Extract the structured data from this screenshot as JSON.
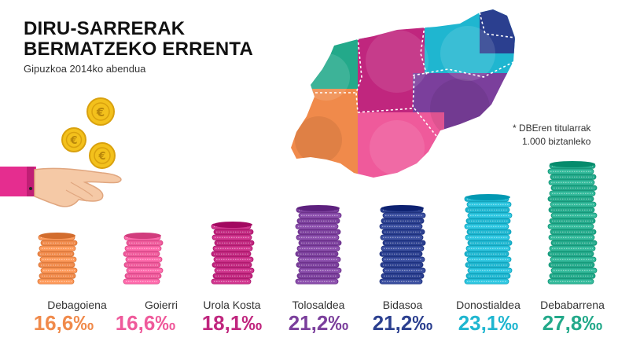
{
  "header": {
    "title_line1": "DIRU-SARRERAK",
    "title_line2": "BERMATZEKO ERRENTA",
    "subtitle": "Gipuzkoa 2014ko abendua"
  },
  "footnote": {
    "line1": "*  DBEren titularrak",
    "line2": "1.000 biztanleko"
  },
  "colors": {
    "Debagoiena": "#f08a4b",
    "Goierri": "#ef5a9b",
    "Urola Kosta": "#c0267e",
    "Tolosaldea": "#7b3f9c",
    "Bidasoa": "#2b3f8f",
    "Donostialdea": "#1fb6d0",
    "Debabarrena": "#23a98a"
  },
  "chart_data": {
    "type": "bar",
    "categories": [
      "Debagoiena",
      "Goierri",
      "Urola Kosta",
      "Tolosaldea",
      "Bidasoa",
      "Donostialdea",
      "Debabarrena"
    ],
    "values": [
      16.6,
      16.6,
      18.1,
      21.2,
      21.2,
      23.1,
      27.8
    ],
    "value_labels": [
      "16,6‰",
      "16,6‰",
      "18,1‰",
      "21,2‰",
      "21,2‰",
      "23,1‰",
      "27,8‰"
    ],
    "unit": "‰"
  }
}
